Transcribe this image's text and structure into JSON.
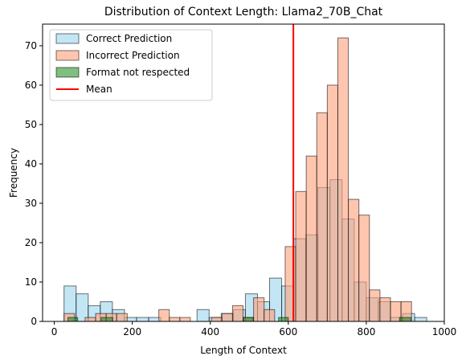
{
  "chart_data": {
    "type": "bar",
    "subtype": "overlaid-histogram",
    "title": "Distribution of Context Length: Llama2_70B_Chat",
    "xlabel": "Length of Context",
    "ylabel": "Frequency",
    "xlim": [
      -30,
      1000
    ],
    "ylim": [
      0,
      75.5
    ],
    "xticks": [
      0,
      200,
      400,
      600,
      800,
      1000
    ],
    "yticks": [
      0,
      10,
      20,
      30,
      40,
      50,
      60,
      70
    ],
    "grid": false,
    "legend_position": "top-left",
    "mean_line": {
      "label": "Mean",
      "x": 613,
      "color": "#ff0000"
    },
    "series": [
      {
        "name": "Correct Prediction",
        "color": "#87ceeb",
        "opacity": 0.5,
        "bin_start": 25,
        "bin_width": 31,
        "values": [
          9,
          7,
          4,
          5,
          3,
          1,
          1,
          1,
          0,
          0,
          0,
          3,
          1,
          2,
          3,
          7,
          5,
          11,
          9,
          21,
          22,
          34,
          36,
          26,
          10,
          6,
          5,
          1,
          2,
          1
        ]
      },
      {
        "name": "Incorrect Prediction",
        "color": "#ffa07a",
        "opacity": 0.6,
        "bin_start": 25,
        "bin_width": 27,
        "values": [
          2,
          0,
          1,
          2,
          2,
          2,
          0,
          0,
          0,
          3,
          1,
          1,
          0,
          0,
          1,
          2,
          4,
          1,
          6,
          3,
          0,
          19,
          33,
          42,
          53,
          60,
          72,
          31,
          27,
          8,
          6,
          5,
          5,
          0
        ]
      },
      {
        "name": "Format not respected",
        "color": "#008000",
        "opacity": 0.5,
        "bars": [
          {
            "x0": 35,
            "x1": 60,
            "value": 1
          },
          {
            "x0": 120,
            "x1": 150,
            "value": 1
          },
          {
            "x0": 485,
            "x1": 510,
            "value": 1
          },
          {
            "x0": 575,
            "x1": 600,
            "value": 1
          },
          {
            "x0": 885,
            "x1": 915,
            "value": 1
          }
        ]
      }
    ]
  }
}
